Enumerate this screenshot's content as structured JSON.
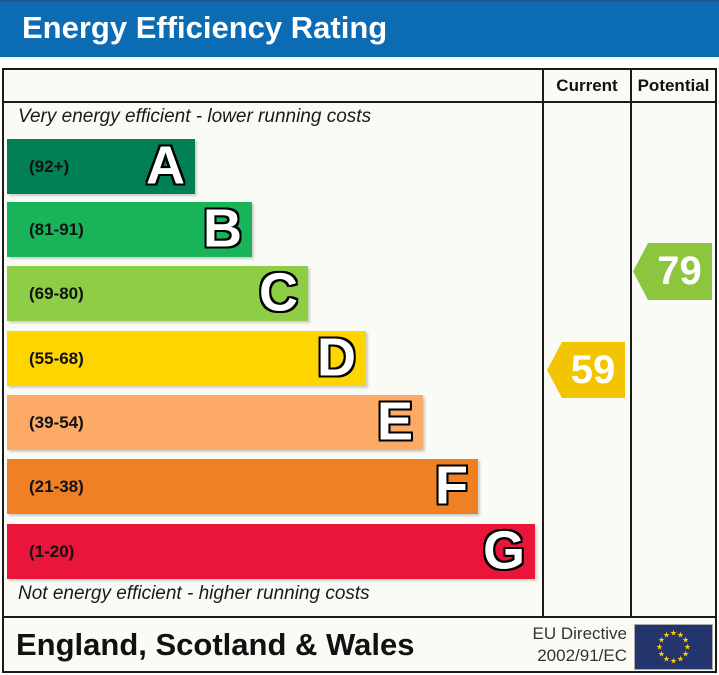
{
  "title": "Energy Efficiency Rating",
  "table": {
    "columns": {
      "current": "Current",
      "potential": "Potential"
    },
    "top_note": "Very energy efficient - lower running costs",
    "bottom_note": "Not energy efficient - higher running costs"
  },
  "chart_data": {
    "type": "bar",
    "title": "Energy Efficiency Rating",
    "bands": [
      {
        "letter": "A",
        "label": "(92+)",
        "min": 92,
        "max": 100,
        "color": "#008054"
      },
      {
        "letter": "B",
        "label": "(81-91)",
        "min": 81,
        "max": 91,
        "color": "#19b459"
      },
      {
        "letter": "C",
        "label": "(69-80)",
        "min": 69,
        "max": 80,
        "color": "#8dce46"
      },
      {
        "letter": "D",
        "label": "(55-68)",
        "min": 55,
        "max": 68,
        "color": "#ffd500"
      },
      {
        "letter": "E",
        "label": "(39-54)",
        "min": 39,
        "max": 54,
        "color": "#fcaa65"
      },
      {
        "letter": "F",
        "label": "(21-38)",
        "min": 21,
        "max": 38,
        "color": "#ef8023"
      },
      {
        "letter": "G",
        "label": "(1-20)",
        "min": 1,
        "max": 20,
        "color": "#e9153b"
      }
    ],
    "current": {
      "value": "59",
      "band": "D",
      "color": "#f2c500"
    },
    "potential": {
      "value": "79",
      "band": "C",
      "color": "#8cc63f"
    }
  },
  "footer": {
    "region": "England, Scotland & Wales",
    "directive_line1": "EU Directive",
    "directive_line2": "2002/91/EC",
    "flag_color": "#24356e",
    "star_color": "#ffcc00",
    "star_count": 12
  }
}
